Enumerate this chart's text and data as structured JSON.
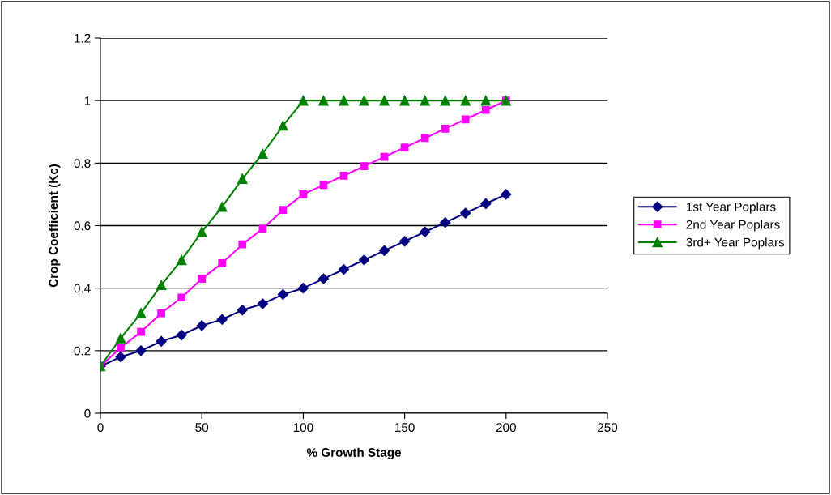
{
  "chart_data": {
    "type": "line",
    "xlabel": "% Growth Stage",
    "ylabel": "Crop Coefficient (Kc)",
    "x": [
      0,
      10,
      20,
      30,
      40,
      50,
      60,
      70,
      80,
      90,
      100,
      110,
      120,
      130,
      140,
      150,
      160,
      170,
      180,
      190,
      200
    ],
    "series": [
      {
        "name": "1st Year Poplars",
        "color": "#000080",
        "marker": "diamond",
        "values": [
          0.15,
          0.18,
          0.2,
          0.23,
          0.25,
          0.28,
          0.3,
          0.33,
          0.35,
          0.38,
          0.4,
          0.43,
          0.46,
          0.49,
          0.52,
          0.55,
          0.58,
          0.61,
          0.64,
          0.67,
          0.7
        ]
      },
      {
        "name": "2nd Year Poplars",
        "color": "#ff00ff",
        "marker": "square",
        "values": [
          0.15,
          0.21,
          0.26,
          0.32,
          0.37,
          0.43,
          0.48,
          0.54,
          0.59,
          0.65,
          0.7,
          0.73,
          0.76,
          0.79,
          0.82,
          0.85,
          0.88,
          0.91,
          0.94,
          0.97,
          1.0
        ]
      },
      {
        "name": "3rd+ Year Poplars",
        "color": "#008000",
        "marker": "triangle",
        "values": [
          0.15,
          0.24,
          0.32,
          0.41,
          0.49,
          0.58,
          0.66,
          0.75,
          0.83,
          0.92,
          1.0,
          1.0,
          1.0,
          1.0,
          1.0,
          1.0,
          1.0,
          1.0,
          1.0,
          1.0,
          1.0
        ]
      }
    ],
    "xlim": [
      0,
      250
    ],
    "xticks": [
      0,
      50,
      100,
      150,
      200,
      250
    ],
    "ylim": [
      0,
      1.2
    ],
    "yticks": [
      0,
      0.2,
      0.4,
      0.6,
      0.8,
      1,
      1.2
    ],
    "grid": "y",
    "legend": "right",
    "line_style": "solid"
  }
}
